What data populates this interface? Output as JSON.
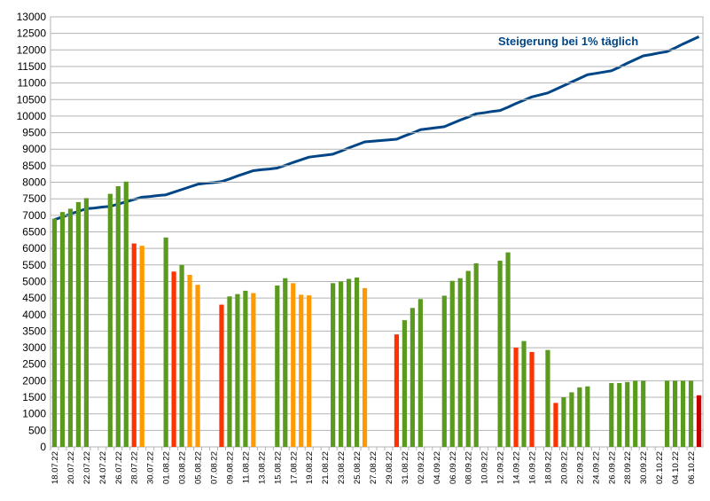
{
  "chart_data": {
    "type": "bar",
    "categories": [
      "18.07.22",
      null,
      "20.07.22",
      null,
      "22.07.22",
      null,
      "24.07.22",
      null,
      "26.07.22",
      null,
      "28.07.22",
      null,
      "30.07.22",
      null,
      "01.08.22",
      null,
      "03.08.22",
      null,
      "05.08.22",
      null,
      "07.08.22",
      null,
      "09.08.22",
      null,
      "11.08.22",
      null,
      "13.08.22",
      null,
      "15.08.22",
      null,
      "17.08.22",
      null,
      "19.08.22",
      null,
      "21.08.22",
      null,
      "23.08.22",
      null,
      "25.08.22",
      null,
      "27.08.22",
      null,
      "29.08.22",
      null,
      "31.08.22",
      null,
      "02.09.22",
      null,
      "04.09.22",
      null,
      "06.09.22",
      null,
      "08.09.22",
      null,
      "10.09.22",
      null,
      "12.09.22",
      null,
      "14.09.22",
      null,
      "16.09.22",
      null,
      "18.09.22",
      null,
      "20.09.22",
      null,
      "22.09.22",
      null,
      "24.09.22",
      null,
      "26.09.22",
      null,
      "28.09.22",
      null,
      "30.09.22",
      null,
      "02.10.22",
      null,
      "04.10.22",
      null,
      "06.10.22",
      null
    ],
    "series": [
      {
        "type": "bar",
        "values": [
          6900,
          7100,
          7200,
          7400,
          7520,
          null,
          null,
          7650,
          7880,
          8020,
          6150,
          6080,
          null,
          null,
          6330,
          5300,
          5500,
          5200,
          4900,
          null,
          null,
          4300,
          4550,
          4620,
          4720,
          4650,
          null,
          null,
          4880,
          5100,
          4950,
          4600,
          4580,
          null,
          null,
          4950,
          5000,
          5080,
          5120,
          4800,
          null,
          null,
          null,
          3400,
          3830,
          4200,
          4470,
          null,
          null,
          4570,
          5020,
          5100,
          5320,
          5550,
          null,
          null,
          5630,
          5880,
          3000,
          3200,
          2870,
          null,
          2930,
          1330,
          1500,
          1650,
          1800,
          1830,
          null,
          null,
          1930,
          1930,
          1960,
          2000,
          2000,
          null,
          null,
          2000,
          2000,
          2000,
          2000,
          1560
        ],
        "colors": [
          "#5a9a1f",
          "#5a9a1f",
          "#5a9a1f",
          "#5a9a1f",
          "#5a9a1f",
          null,
          null,
          "#5a9a1f",
          "#5a9a1f",
          "#5a9a1f",
          "#ff3300",
          "#ff9900",
          null,
          null,
          "#5a9a1f",
          "#ff3300",
          "#5a9a1f",
          "#ff9900",
          "#ff9900",
          null,
          null,
          "#ff3300",
          "#5a9a1f",
          "#5a9a1f",
          "#5a9a1f",
          "#ff9900",
          null,
          null,
          "#5a9a1f",
          "#5a9a1f",
          "#ff9900",
          "#ff9900",
          "#ff9900",
          null,
          null,
          "#5a9a1f",
          "#5a9a1f",
          "#5a9a1f",
          "#5a9a1f",
          "#ff9900",
          null,
          null,
          null,
          "#ff3300",
          "#5a9a1f",
          "#5a9a1f",
          "#5a9a1f",
          null,
          null,
          "#5a9a1f",
          "#5a9a1f",
          "#5a9a1f",
          "#5a9a1f",
          "#5a9a1f",
          null,
          null,
          "#5a9a1f",
          "#5a9a1f",
          "#ff3300",
          "#5a9a1f",
          "#ff3300",
          null,
          "#5a9a1f",
          "#ff3300",
          "#5a9a1f",
          "#5a9a1f",
          "#5a9a1f",
          "#5a9a1f",
          null,
          null,
          "#5a9a1f",
          "#5a9a1f",
          "#5a9a1f",
          "#5a9a1f",
          "#5a9a1f",
          null,
          null,
          "#5a9a1f",
          "#5a9a1f",
          "#5a9a1f",
          "#5a9a1f",
          "#c00000"
        ]
      },
      {
        "type": "line",
        "name": "Steigerung bei 1% täglich",
        "color": "#004586",
        "values": [
          6870,
          6950,
          7040,
          7120,
          7200,
          7220,
          7250,
          7270,
          7340,
          7410,
          7480,
          7550,
          7570,
          7600,
          7620,
          7700,
          7780,
          7860,
          7940,
          7970,
          7990,
          8020,
          8100,
          8190,
          8270,
          8350,
          8380,
          8400,
          8430,
          8510,
          8600,
          8680,
          8760,
          8790,
          8820,
          8850,
          8940,
          9040,
          9130,
          9220,
          9240,
          9260,
          9280,
          9300,
          9400,
          9490,
          9590,
          9620,
          9650,
          9680,
          9780,
          9880,
          9970,
          10070,
          10100,
          10140,
          10170,
          10270,
          10380,
          10480,
          10580,
          10640,
          10700,
          10810,
          10920,
          11030,
          11140,
          11250,
          11290,
          11330,
          11370,
          11480,
          11600,
          11710,
          11820,
          11860,
          11910,
          11950,
          12060,
          12180,
          12290,
          12400
        ]
      }
    ],
    "ylim": [
      0,
      13000
    ],
    "yticks": [
      0,
      500,
      1000,
      1500,
      2000,
      2500,
      3000,
      3500,
      4000,
      4500,
      5000,
      5500,
      6000,
      6500,
      7000,
      7500,
      8000,
      8500,
      9000,
      9500,
      10000,
      10500,
      11000,
      11500,
      12000,
      12500,
      13000
    ],
    "grid": true
  }
}
